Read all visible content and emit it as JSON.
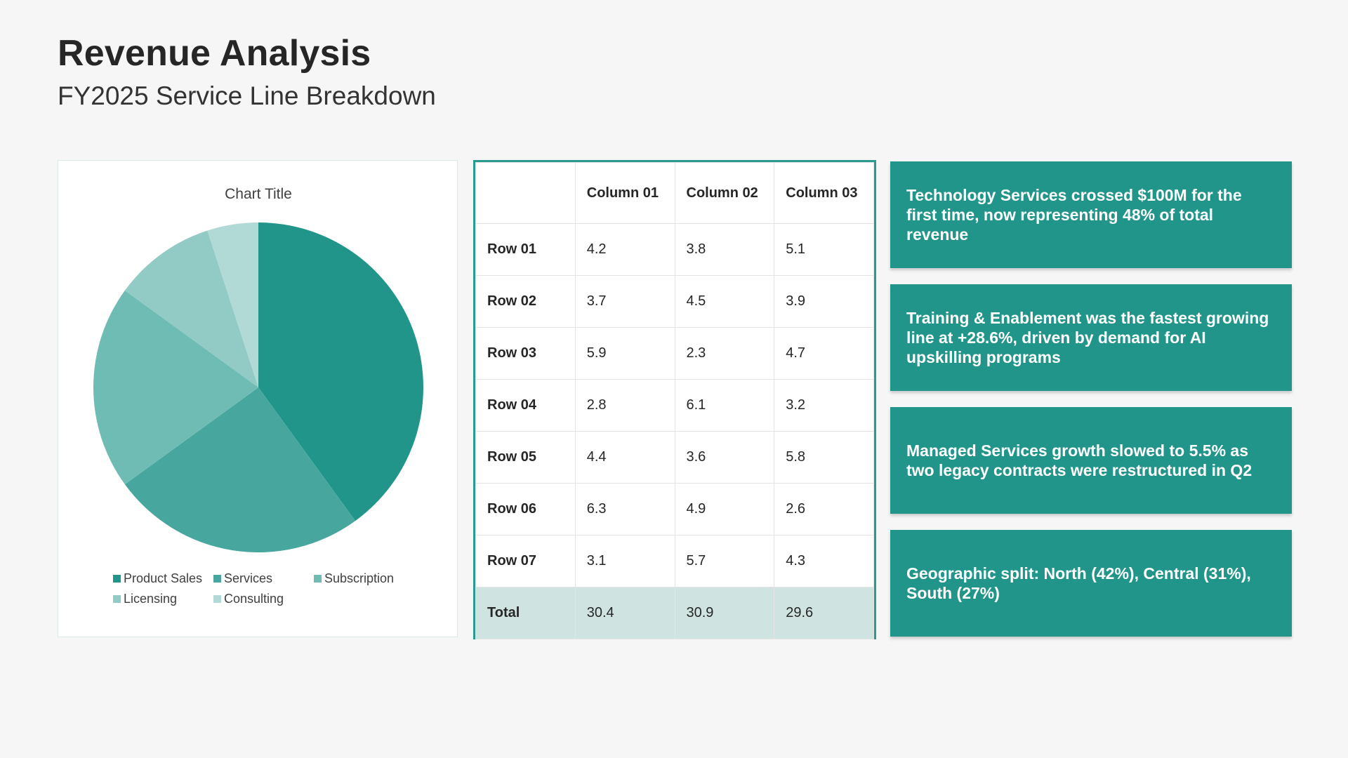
{
  "header": {
    "title": "Revenue Analysis",
    "subtitle": "FY2025 Service Line Breakdown"
  },
  "colors": {
    "accent": "#22958a",
    "total_row_bg": "#cfe4e1"
  },
  "chart_data": {
    "type": "pie",
    "title": "Chart Title",
    "legend_position": "bottom",
    "slices": [
      {
        "label": "Product Sales",
        "value": 40,
        "color": "#22958a"
      },
      {
        "label": "Services",
        "value": 25,
        "color": "#47a79f"
      },
      {
        "label": "Subscription",
        "value": 20,
        "color": "#6fbcb5"
      },
      {
        "label": "Licensing",
        "value": 10,
        "color": "#92cac5"
      },
      {
        "label": "Consulting",
        "value": 5,
        "color": "#b1dad6"
      }
    ]
  },
  "table": {
    "columns": [
      "",
      "Column 01",
      "Column 02",
      "Column 03"
    ],
    "rows": [
      [
        "Row 01",
        "4.2",
        "3.8",
        "5.1"
      ],
      [
        "Row 02",
        "3.7",
        "4.5",
        "3.9"
      ],
      [
        "Row 03",
        "5.9",
        "2.3",
        "4.7"
      ],
      [
        "Row 04",
        "2.8",
        "6.1",
        "3.2"
      ],
      [
        "Row 05",
        "4.4",
        "3.6",
        "5.8"
      ],
      [
        "Row 06",
        "6.3",
        "4.9",
        "2.6"
      ],
      [
        "Row 07",
        "3.1",
        "5.7",
        "4.3"
      ],
      [
        "Total",
        "30.4",
        "30.9",
        "29.6"
      ]
    ]
  },
  "insights": [
    "Technology Services crossed $100M for the first time, now representing 48% of total revenue",
    "Training & Enablement was the fastest growing line at +28.6%, driven by demand for AI upskilling programs",
    "Managed Services growth slowed to 5.5% as two legacy contracts were restructured in Q2",
    "Geographic split: North (42%), Central (31%), South (27%)"
  ]
}
